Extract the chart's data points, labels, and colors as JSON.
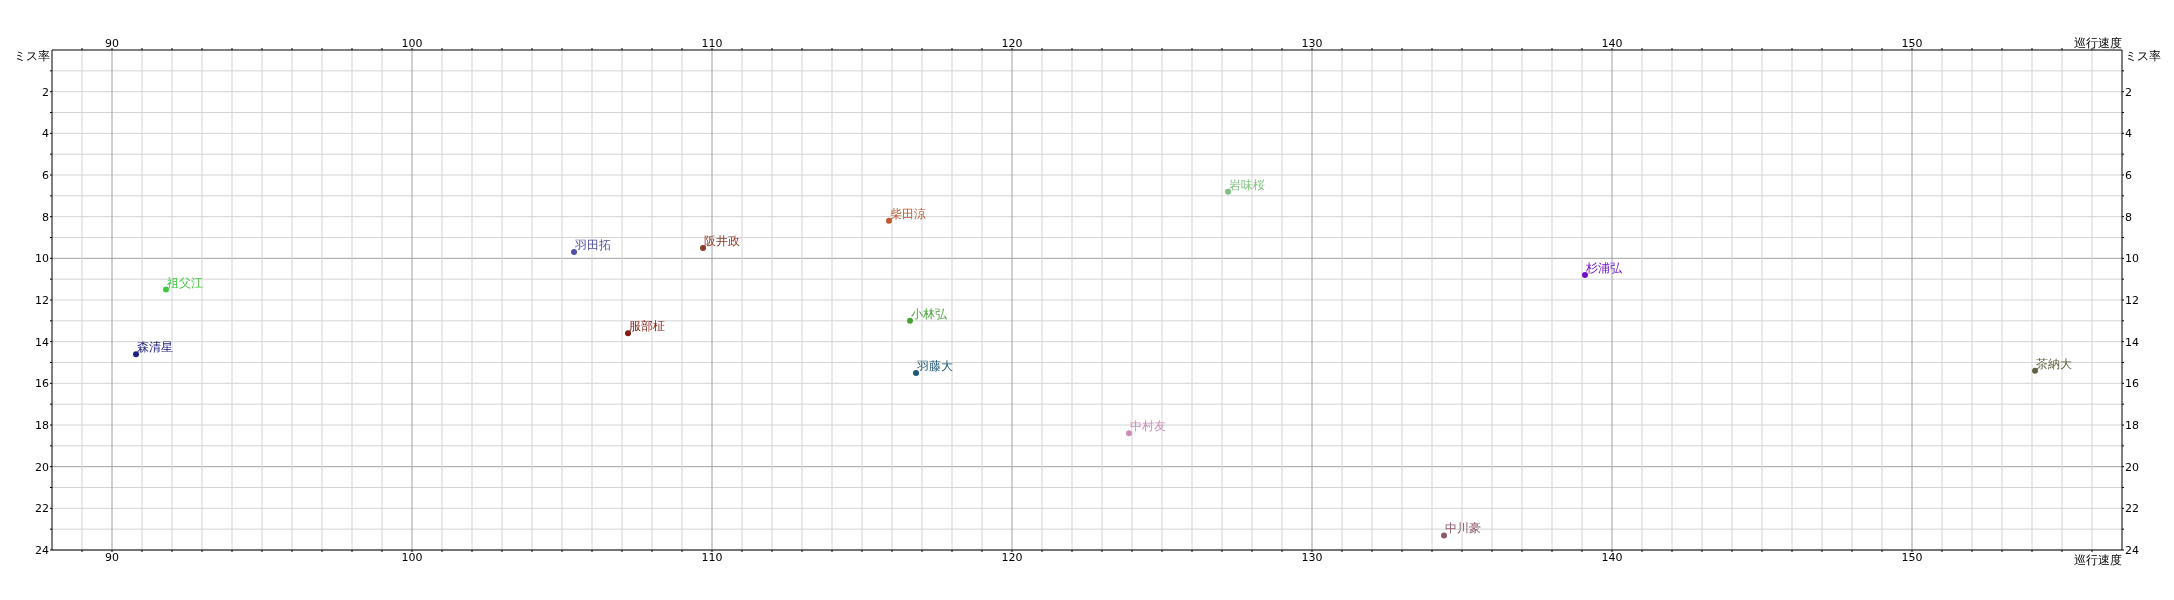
{
  "chart_data": {
    "type": "scatter",
    "xlabel": "巡行速度",
    "x2label": "巡行速度",
    "ylabel": "ミス率",
    "y2label": "ミス率",
    "xlim": [
      88,
      157
    ],
    "xticks": [
      {
        "value": 89,
        "label": null
      },
      90,
      {
        "value": 91,
        "label": null
      },
      {
        "value": 92,
        "label": null
      },
      {
        "value": 93,
        "label": null
      },
      {
        "value": 94,
        "label": null
      },
      {
        "value": 95,
        "label": null
      },
      {
        "value": 96,
        "label": null
      },
      {
        "value": 97,
        "label": null
      },
      {
        "value": 98,
        "label": null
      },
      {
        "value": 99,
        "label": null
      },
      100,
      {
        "value": 101,
        "label": null
      },
      {
        "value": 102,
        "label": null
      },
      {
        "value": 103,
        "label": null
      },
      {
        "value": 104,
        "label": null
      },
      {
        "value": 105,
        "label": null
      },
      {
        "value": 106,
        "label": null
      },
      {
        "value": 107,
        "label": null
      },
      {
        "value": 108,
        "label": null
      },
      {
        "value": 109,
        "label": null
      },
      110,
      {
        "value": 111,
        "label": null
      },
      {
        "value": 112,
        "label": null
      },
      {
        "value": 113,
        "label": null
      },
      {
        "value": 114,
        "label": null
      },
      {
        "value": 115,
        "label": null
      },
      {
        "value": 116,
        "label": null
      },
      {
        "value": 117,
        "label": null
      },
      {
        "value": 118,
        "label": null
      },
      {
        "value": 119,
        "label": null
      },
      120,
      {
        "value": 121,
        "label": null
      },
      {
        "value": 122,
        "label": null
      },
      {
        "value": 123,
        "label": null
      },
      {
        "value": 124,
        "label": null
      },
      {
        "value": 125,
        "label": null
      },
      {
        "value": 126,
        "label": null
      },
      {
        "value": 127,
        "label": null
      },
      {
        "value": 128,
        "label": null
      },
      {
        "value": 129,
        "label": null
      },
      130,
      {
        "value": 131,
        "label": null
      },
      {
        "value": 132,
        "label": null
      },
      {
        "value": 133,
        "label": null
      },
      {
        "value": 134,
        "label": null
      },
      {
        "value": 135,
        "label": null
      },
      {
        "value": 136,
        "label": null
      },
      {
        "value": 137,
        "label": null
      },
      {
        "value": 138,
        "label": null
      },
      {
        "value": 139,
        "label": null
      },
      140,
      {
        "value": 141,
        "label": null
      },
      {
        "value": 142,
        "label": null
      },
      {
        "value": 143,
        "label": null
      },
      {
        "value": 144,
        "label": null
      },
      {
        "value": 145,
        "label": null
      },
      {
        "value": 146,
        "label": null
      },
      {
        "value": 147,
        "label": null
      },
      {
        "value": 148,
        "label": null
      },
      {
        "value": 149,
        "label": null
      },
      150,
      {
        "value": 151,
        "label": null
      },
      {
        "value": 152,
        "label": null
      },
      {
        "value": 153,
        "label": null
      },
      {
        "value": 154,
        "label": null
      },
      {
        "value": 155,
        "label": null
      },
      {
        "value": 156,
        "label": null
      }
    ],
    "x2lim": [
      88,
      157
    ],
    "x2ticks": [
      {
        "value": 89,
        "label": null
      },
      90,
      {
        "value": 91,
        "label": null
      },
      {
        "value": 92,
        "label": null
      },
      {
        "value": 93,
        "label": null
      },
      {
        "value": 94,
        "label": null
      },
      {
        "value": 95,
        "label": null
      },
      {
        "value": 96,
        "label": null
      },
      {
        "value": 97,
        "label": null
      },
      {
        "value": 98,
        "label": null
      },
      {
        "value": 99,
        "label": null
      },
      100,
      {
        "value": 101,
        "label": null
      },
      {
        "value": 102,
        "label": null
      },
      {
        "value": 103,
        "label": null
      },
      {
        "value": 104,
        "label": null
      },
      {
        "value": 105,
        "label": null
      },
      {
        "value": 106,
        "label": null
      },
      {
        "value": 107,
        "label": null
      },
      {
        "value": 108,
        "label": null
      },
      {
        "value": 109,
        "label": null
      },
      110,
      {
        "value": 111,
        "label": null
      },
      {
        "value": 112,
        "label": null
      },
      {
        "value": 113,
        "label": null
      },
      {
        "value": 114,
        "label": null
      },
      {
        "value": 115,
        "label": null
      },
      {
        "value": 116,
        "label": null
      },
      {
        "value": 117,
        "label": null
      },
      {
        "value": 118,
        "label": null
      },
      {
        "value": 119,
        "label": null
      },
      120,
      {
        "value": 121,
        "label": null
      },
      {
        "value": 122,
        "label": null
      },
      {
        "value": 123,
        "label": null
      },
      {
        "value": 124,
        "label": null
      },
      {
        "value": 125,
        "label": null
      },
      {
        "value": 126,
        "label": null
      },
      {
        "value": 127,
        "label": null
      },
      {
        "value": 128,
        "label": null
      },
      {
        "value": 129,
        "label": null
      },
      130,
      {
        "value": 131,
        "label": null
      },
      {
        "value": 132,
        "label": null
      },
      {
        "value": 133,
        "label": null
      },
      {
        "value": 134,
        "label": null
      },
      {
        "value": 135,
        "label": null
      },
      {
        "value": 136,
        "label": null
      },
      {
        "value": 137,
        "label": null
      },
      {
        "value": 138,
        "label": null
      },
      {
        "value": 139,
        "label": null
      },
      140,
      {
        "value": 141,
        "label": null
      },
      {
        "value": 142,
        "label": null
      },
      {
        "value": 143,
        "label": null
      },
      {
        "value": 144,
        "label": null
      },
      {
        "value": 145,
        "label": null
      },
      {
        "value": 146,
        "label": null
      },
      {
        "value": 147,
        "label": null
      },
      {
        "value": 148,
        "label": null
      },
      {
        "value": 149,
        "label": null
      },
      150,
      {
        "value": 151,
        "label": null
      },
      {
        "value": 152,
        "label": null
      },
      {
        "value": 153,
        "label": null
      },
      {
        "value": 154,
        "label": null
      },
      {
        "value": 155,
        "label": null
      },
      {
        "value": 156,
        "label": null
      }
    ],
    "ylim": [
      24,
      0
    ],
    "yticks": [
      {
        "value": 1,
        "label": null
      },
      2,
      {
        "value": 3,
        "label": null
      },
      4,
      {
        "value": 5,
        "label": null
      },
      6,
      {
        "value": 7,
        "label": null
      },
      8,
      {
        "value": 9,
        "label": null
      },
      10,
      {
        "value": 11,
        "label": null
      },
      12,
      {
        "value": 13,
        "label": null
      },
      14,
      {
        "value": 15,
        "label": null
      },
      16,
      {
        "value": 17,
        "label": null
      },
      18,
      {
        "value": 19,
        "label": null
      },
      20,
      {
        "value": 21,
        "label": null
      },
      22,
      {
        "value": 23,
        "label": null
      },
      24
    ],
    "y2lim": [
      24,
      0
    ],
    "y2ticks": [
      {
        "value": 1,
        "label": null
      },
      2,
      {
        "value": 3,
        "label": null
      },
      4,
      {
        "value": 5,
        "label": null
      },
      6,
      {
        "value": 7,
        "label": null
      },
      8,
      {
        "value": 9,
        "label": null
      },
      10,
      {
        "value": 11,
        "label": null
      },
      12,
      {
        "value": 13,
        "label": null
      },
      14,
      {
        "value": 15,
        "label": null
      },
      16,
      {
        "value": 17,
        "label": null
      },
      18,
      {
        "value": 19,
        "label": null
      },
      20,
      {
        "value": 21,
        "label": null
      },
      22,
      {
        "value": 23,
        "label": null
      },
      24
    ],
    "grid": true,
    "marker": "circle",
    "series": [
      {
        "name": "森清星",
        "color": "#202080",
        "x": [
          90.8
        ],
        "values": [
          14.6
        ]
      },
      {
        "name": "祖父江",
        "color": "#40c840",
        "x": [
          91.8
        ],
        "values": [
          11.5
        ]
      },
      {
        "name": "羽田拓",
        "color": "#5050a8",
        "x": [
          105.4
        ],
        "values": [
          9.7
        ]
      },
      {
        "name": "服部柾",
        "color": "#801c10",
        "x": [
          107.2
        ],
        "values": [
          13.6
        ]
      },
      {
        "name": "阪井政",
        "color": "#8c3c28",
        "x": [
          109.7
        ],
        "values": [
          9.5
        ]
      },
      {
        "name": "柴田涼",
        "color": "#c05830",
        "x": [
          115.9
        ],
        "values": [
          8.2
        ]
      },
      {
        "name": "小林弘",
        "color": "#48a038",
        "x": [
          116.6
        ],
        "values": [
          13.0
        ]
      },
      {
        "name": "羽藤大",
        "color": "#1c5878",
        "x": [
          116.8
        ],
        "values": [
          15.5
        ]
      },
      {
        "name": "中村友",
        "color": "#c890b8",
        "x": [
          123.9
        ],
        "values": [
          18.4
        ]
      },
      {
        "name": "岩味桜",
        "color": "#80c080",
        "x": [
          127.2
        ],
        "values": [
          6.8
        ]
      },
      {
        "name": "中川豪",
        "color": "#8c5868",
        "x": [
          134.4
        ],
        "values": [
          23.3
        ]
      },
      {
        "name": "杉浦弘",
        "color": "#7010c8",
        "x": [
          139.1
        ],
        "values": [
          10.8
        ]
      },
      {
        "name": "茶納大",
        "color": "#606040",
        "x": [
          154.1
        ],
        "values": [
          15.4
        ]
      }
    ]
  }
}
